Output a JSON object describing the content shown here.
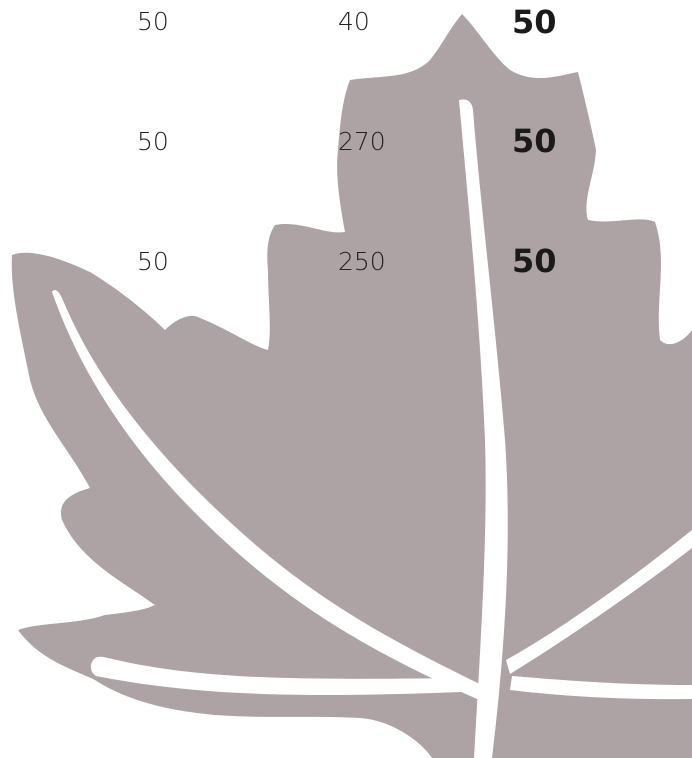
{
  "colors": {
    "leaf": "#ada3a4",
    "veins": "#ffffff",
    "text": "#222222"
  },
  "rows": [
    {
      "col1": "50",
      "col2": "40",
      "col3": "50"
    },
    {
      "col1": "50",
      "col2": "270",
      "col3": "50"
    },
    {
      "col1": "50",
      "col2": "250",
      "col3": "50"
    }
  ]
}
